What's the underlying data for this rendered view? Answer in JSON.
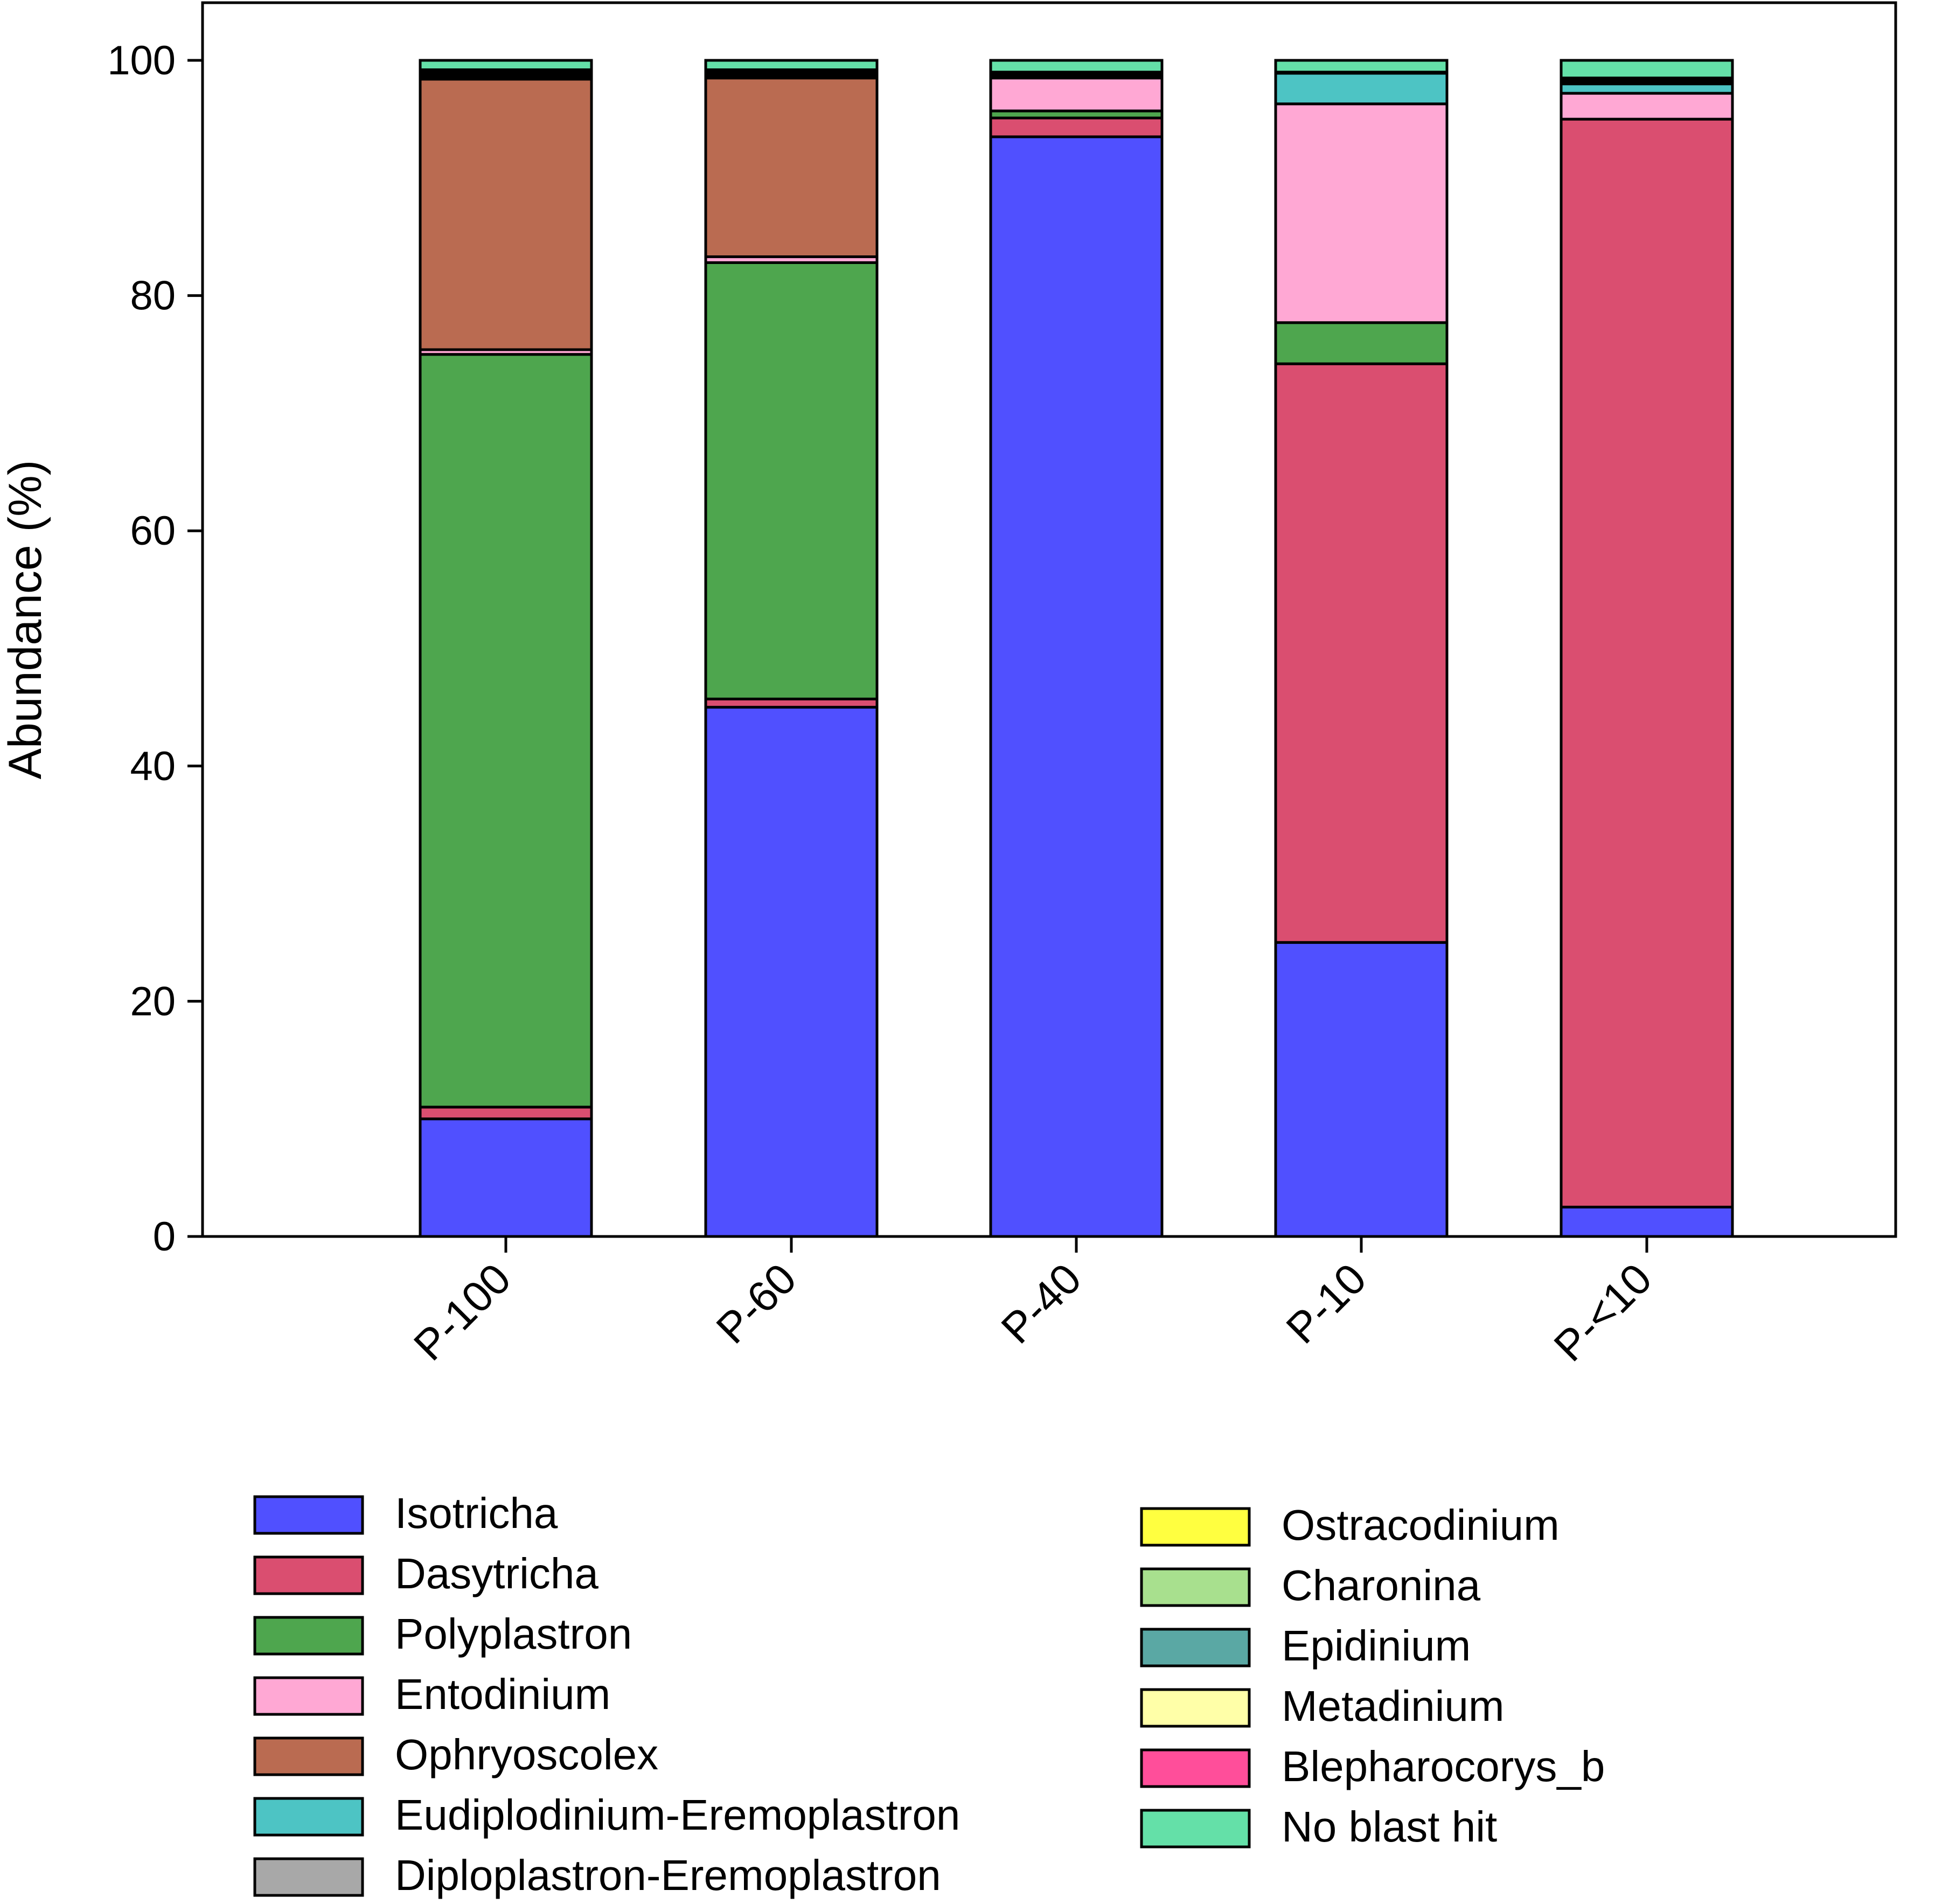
{
  "chart_data": {
    "type": "bar",
    "stacked": true,
    "title": "",
    "xlabel": "",
    "ylabel": "Abundance (%)",
    "ylim": [
      0,
      100
    ],
    "yticks": [
      0,
      20,
      40,
      60,
      80,
      100
    ],
    "categories": [
      "P-100",
      "P-60",
      "P-40",
      "P-10",
      "P-<10"
    ],
    "series": [
      {
        "name": "Isotricha",
        "color": "#5050FF",
        "values": [
          10.0,
          45.0,
          93.5,
          25.0,
          2.5
        ]
      },
      {
        "name": "Dasytricha",
        "color": "#DA4E70",
        "values": [
          1.0,
          0.7,
          1.6,
          49.2,
          92.5
        ]
      },
      {
        "name": "Polyplastron",
        "color": "#4EA64E",
        "values": [
          64.0,
          37.1,
          0.6,
          3.5,
          0.0
        ]
      },
      {
        "name": "Entodinium",
        "color": "#FFA8D4",
        "values": [
          0.4,
          0.5,
          2.8,
          18.6,
          2.2
        ]
      },
      {
        "name": "Ophryoscolex",
        "color": "#BA6B51",
        "values": [
          23.0,
          15.2,
          0.0,
          0.0,
          0.0
        ]
      },
      {
        "name": "Eudiplodinium-Eremoplastron",
        "color": "#4DC4C4",
        "values": [
          0.0,
          0.0,
          0.0,
          2.6,
          0.8
        ]
      },
      {
        "name": "Diploplastron-Eremoplastron",
        "color": "#A8A8A8",
        "values": [
          0.2,
          0.2,
          0.1,
          0.1,
          0.1
        ]
      },
      {
        "name": "Ostracodinium",
        "color": "#FFFF40",
        "values": [
          0.2,
          0.0,
          0.0,
          0.0,
          0.0
        ]
      },
      {
        "name": "Charonina",
        "color": "#A8E08E",
        "values": [
          0.2,
          0.2,
          0.2,
          0.0,
          0.2
        ]
      },
      {
        "name": "Epidinium",
        "color": "#5AA8A4",
        "values": [
          0.0,
          0.1,
          0.0,
          0.0,
          0.0
        ]
      },
      {
        "name": "Metadinium",
        "color": "#FFFFA8",
        "values": [
          0.1,
          0.1,
          0.1,
          0.0,
          0.1
        ]
      },
      {
        "name": "Blepharocorys_b",
        "color": "#FF4E9A",
        "values": [
          0.1,
          0.1,
          0.1,
          0.0,
          0.1
        ]
      },
      {
        "name": "No blast hit",
        "color": "#64E0A8",
        "values": [
          0.8,
          0.8,
          1.0,
          1.0,
          1.5
        ]
      }
    ],
    "legend": {
      "placement": "bottom",
      "left_column": [
        "Isotricha",
        "Dasytricha",
        "Polyplastron",
        "Entodinium",
        "Ophryoscolex",
        "Eudiplodinium-Eremoplastron",
        "Diploplastron-Eremoplastron"
      ],
      "right_column": [
        "Ostracodinium",
        "Charonina",
        "Epidinium",
        "Metadinium",
        "Blepharocorys_b",
        "No blast hit"
      ]
    }
  }
}
